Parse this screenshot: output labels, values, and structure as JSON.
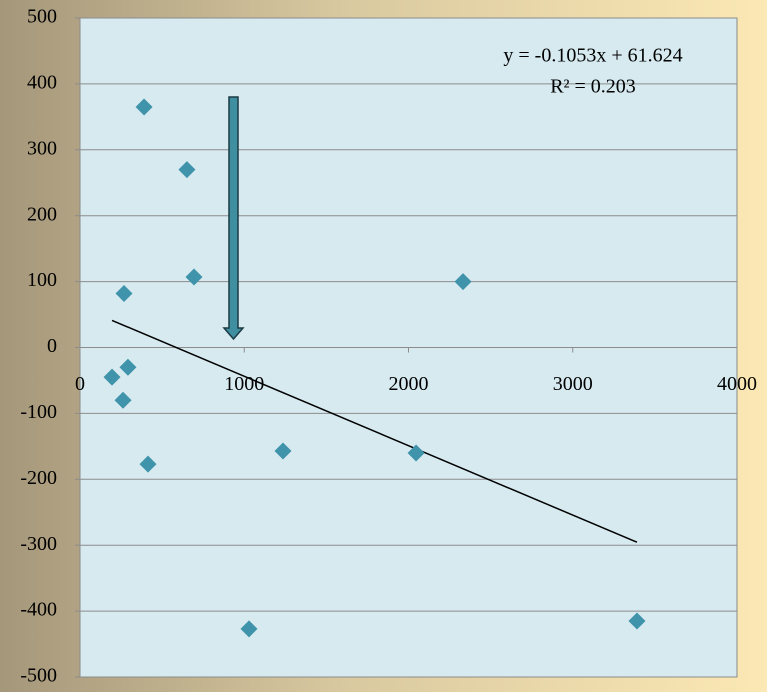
{
  "chart_data": {
    "type": "scatter",
    "x": [
      390,
      651,
      694,
      268,
      2332,
      195,
      292,
      262,
      414,
      1236,
      2046,
      1029,
      3391
    ],
    "values": [
      365,
      270,
      107,
      82,
      100,
      -45,
      -30,
      -80,
      -177,
      -157,
      -160,
      -427,
      -415
    ],
    "color": "#3f93aa",
    "xlim": [
      0,
      4000
    ],
    "xticks": [
      0,
      1000,
      2000,
      3000,
      4000
    ],
    "ylim": [
      -500,
      500
    ],
    "yticks": [
      -500,
      -400,
      -300,
      -200,
      -100,
      0,
      100,
      200,
      300,
      400,
      500
    ],
    "grid": true,
    "trendline": {
      "slope": -0.1053,
      "intercept": 61.624,
      "label": "y = -0.1053x + 61.624",
      "r2_label": "R² = 0.203"
    }
  }
}
